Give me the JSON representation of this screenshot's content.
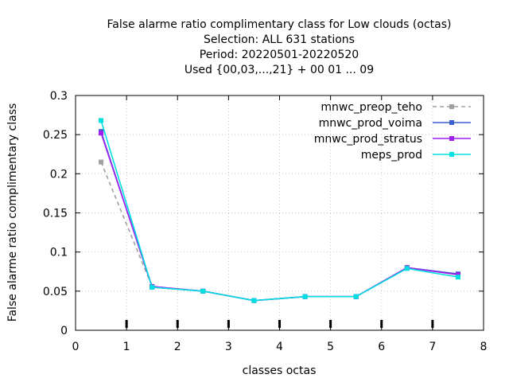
{
  "chart_data": {
    "type": "line",
    "title_lines": [
      "False alarme ratio complimentary class  for Low clouds (octas)",
      "Selection: ALL    631 stations",
      "Period: 20220501-20220520",
      "Used {00,03,...,21} + 00 01 ... 09"
    ],
    "xlabel": "classes octas",
    "ylabel": "False alarme ratio complimentary class",
    "xlim": [
      0,
      8
    ],
    "ylim": [
      0,
      0.3
    ],
    "xticks": [
      0,
      1,
      2,
      3,
      4,
      5,
      6,
      7,
      8
    ],
    "yticks": [
      0,
      0.05,
      0.1,
      0.15,
      0.2,
      0.25,
      0.3
    ],
    "xtick_labels": [
      "0",
      "1",
      "2",
      "3",
      "4",
      "5",
      "6",
      "7",
      "8"
    ],
    "ytick_labels": [
      "0",
      "0.05",
      "0.1",
      "0.15",
      "0.2",
      "0.25",
      "0.3"
    ],
    "grid": true,
    "legend_position": "top-right",
    "x": [
      0.5,
      1.5,
      2.5,
      3.5,
      4.5,
      5.5,
      6.5,
      7.5
    ],
    "series": [
      {
        "name": "mnwc_preop_teho",
        "color": "#a0a0a0",
        "dash": true,
        "values": [
          0.215,
          0.056,
          0.05,
          0.038,
          0.043,
          0.043,
          0.08,
          0.071
        ]
      },
      {
        "name": "mnwc_prod_voima",
        "color": "#3a5fcd",
        "dash": false,
        "values": [
          0.254,
          0.055,
          0.05,
          0.038,
          0.043,
          0.043,
          0.08,
          0.072
        ]
      },
      {
        "name": "mnwc_prod_stratus",
        "color": "#a020f0",
        "dash": false,
        "values": [
          0.252,
          0.056,
          0.05,
          0.038,
          0.043,
          0.043,
          0.08,
          0.071
        ]
      },
      {
        "name": "meps_prod",
        "color": "#00e0e0",
        "dash": false,
        "values": [
          0.268,
          0.055,
          0.05,
          0.038,
          0.043,
          0.043,
          0.079,
          0.068
        ]
      }
    ],
    "bottom_marks_x": [
      1,
      2,
      3,
      4,
      5,
      6,
      7
    ]
  }
}
